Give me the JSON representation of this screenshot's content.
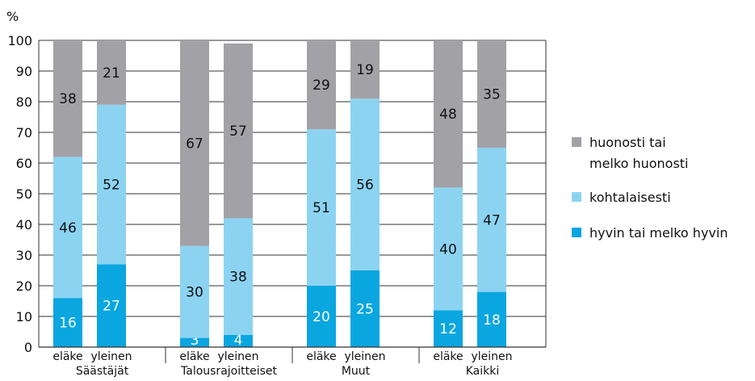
{
  "chart_data": {
    "type": "bar",
    "stacked": true,
    "ylabel": "%",
    "ylim": [
      0,
      100
    ],
    "yticks": [
      0,
      10,
      20,
      30,
      40,
      50,
      60,
      70,
      80,
      90,
      100
    ],
    "grid": true,
    "legend_position": "right",
    "groups": [
      {
        "label": "Säästäjät",
        "bars": [
          {
            "label": "eläke",
            "values": [
              16,
              46,
              38
            ]
          },
          {
            "label": "yleinen",
            "values": [
              27,
              52,
              21
            ]
          }
        ]
      },
      {
        "label": "Talousrajoitteiset",
        "bars": [
          {
            "label": "eläke",
            "values": [
              3,
              30,
              67
            ]
          },
          {
            "label": "yleinen",
            "values": [
              4,
              38,
              57
            ]
          }
        ]
      },
      {
        "label": "Muut",
        "bars": [
          {
            "label": "eläke",
            "values": [
              20,
              51,
              29
            ]
          },
          {
            "label": "yleinen",
            "values": [
              25,
              56,
              19
            ]
          }
        ]
      },
      {
        "label": "Kaikki",
        "bars": [
          {
            "label": "eläke",
            "values": [
              12,
              40,
              48
            ]
          },
          {
            "label": "yleinen",
            "values": [
              18,
              47,
              35
            ]
          }
        ]
      }
    ],
    "series": [
      {
        "name": "hyvin tai melko hyvin",
        "color": "#0aa6e0",
        "label_color": "#ffffff"
      },
      {
        "name": "kohtalaisesti",
        "color": "#8cd3f2",
        "label_color": "#111111"
      },
      {
        "name": "huonosti tai melko huonosti",
        "color": "#a2a2a6",
        "label_color": "#111111"
      }
    ],
    "legend": [
      {
        "series": 2,
        "lines": [
          "huonosti tai",
          "melko huonosti"
        ]
      },
      {
        "series": 1,
        "lines": [
          "kohtalaisesti"
        ]
      },
      {
        "series": 0,
        "lines": [
          "hyvin tai melko hyvin"
        ]
      }
    ]
  }
}
